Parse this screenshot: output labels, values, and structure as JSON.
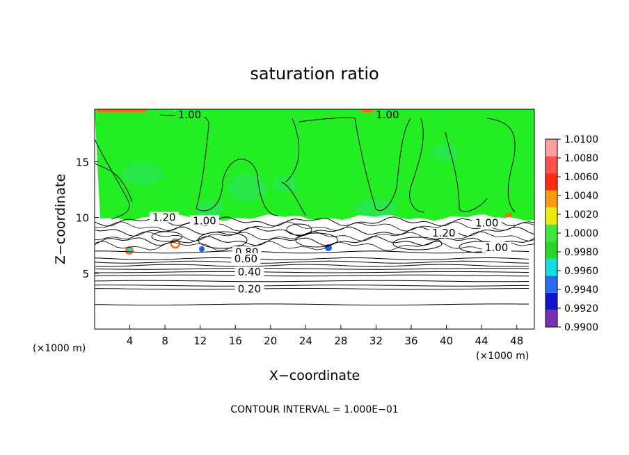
{
  "chart_data": {
    "type": "heatmap",
    "title": "saturation ratio",
    "xlabel": "X−coordinate",
    "ylabel": "Z−coordinate",
    "x_unit_left": "(×1000 m)",
    "x_unit_right": "(×1000 m)",
    "footer": "CONTOUR INTERVAL = 1.000E−01",
    "xlim": [
      0,
      50
    ],
    "ylim": [
      0,
      19.7
    ],
    "x_ticks": [
      4,
      8,
      12,
      16,
      20,
      24,
      28,
      32,
      36,
      40,
      44,
      48
    ],
    "y_ticks": [
      5,
      10,
      15
    ],
    "grid": false,
    "colorbar": {
      "levels": [
        "0.9900",
        "0.9920",
        "0.9940",
        "0.9960",
        "0.9980",
        "1.0000",
        "1.0020",
        "1.0040",
        "1.0060",
        "1.0080",
        "1.0100"
      ],
      "colors": [
        "#7a2fb0",
        "#1414d0",
        "#2a6cf0",
        "#12e0e0",
        "#28d828",
        "#3ee83e",
        "#eaea10",
        "#ff9a10",
        "#ff2a10",
        "#ff5050",
        "#ffa0a0"
      ]
    },
    "cloud_top_z": 10,
    "field_colors": {
      "saturated": "#22ee22",
      "subsaturated": "#ffffff",
      "dry_patch": "#3ad9c0",
      "supersat": "#ff6a10",
      "min": "#1f5de8"
    },
    "contour_labels": [
      {
        "text": "1.00",
        "x": 10.8,
        "z": 19.2
      },
      {
        "text": "1.00",
        "x": 33.3,
        "z": 19.2
      },
      {
        "text": "1.20",
        "x": 7.9,
        "z": 10.0
      },
      {
        "text": "1.00",
        "x": 12.5,
        "z": 9.7
      },
      {
        "text": "1.00",
        "x": 44.6,
        "z": 9.5
      },
      {
        "text": "1.20",
        "x": 39.7,
        "z": 8.6
      },
      {
        "text": "1.00",
        "x": 45.7,
        "z": 7.3
      },
      {
        "text": "0.80",
        "x": 17.3,
        "z": 6.9
      },
      {
        "text": "0.60",
        "x": 17.2,
        "z": 6.3
      },
      {
        "text": "0.40",
        "x": 17.6,
        "z": 5.1
      },
      {
        "text": "0.20",
        "x": 17.6,
        "z": 3.6
      }
    ],
    "stratified_contours_z": [
      6.9,
      6.3,
      6.0,
      5.7,
      5.4,
      5.1,
      4.8,
      4.3,
      3.9,
      3.6,
      2.2
    ]
  }
}
